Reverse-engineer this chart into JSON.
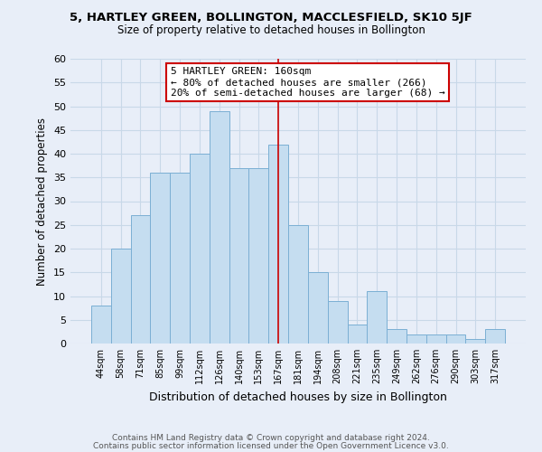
{
  "title": "5, HARTLEY GREEN, BOLLINGTON, MACCLESFIELD, SK10 5JF",
  "subtitle": "Size of property relative to detached houses in Bollington",
  "xlabel": "Distribution of detached houses by size in Bollington",
  "ylabel": "Number of detached properties",
  "footer_line1": "Contains HM Land Registry data © Crown copyright and database right 2024.",
  "footer_line2": "Contains public sector information licensed under the Open Government Licence v3.0.",
  "bin_labels": [
    "44sqm",
    "58sqm",
    "71sqm",
    "85sqm",
    "99sqm",
    "112sqm",
    "126sqm",
    "140sqm",
    "153sqm",
    "167sqm",
    "181sqm",
    "194sqm",
    "208sqm",
    "221sqm",
    "235sqm",
    "249sqm",
    "262sqm",
    "276sqm",
    "290sqm",
    "303sqm",
    "317sqm"
  ],
  "bar_heights": [
    8,
    20,
    27,
    36,
    36,
    40,
    49,
    37,
    37,
    42,
    25,
    15,
    9,
    4,
    11,
    3,
    2,
    2,
    2,
    1,
    3
  ],
  "bar_color": "#c5ddf0",
  "bar_edge_color": "#7bafd4",
  "property_line_x": 9.0,
  "property_line_color": "#cc0000",
  "annotation_title": "5 HARTLEY GREEN: 160sqm",
  "annotation_line1": "← 80% of detached houses are smaller (266)",
  "annotation_line2": "20% of semi-detached houses are larger (68) →",
  "annotation_box_color": "#ffffff",
  "annotation_box_edge_color": "#cc0000",
  "ylim": [
    0,
    60
  ],
  "yticks": [
    0,
    5,
    10,
    15,
    20,
    25,
    30,
    35,
    40,
    45,
    50,
    55,
    60
  ],
  "grid_color": "#c8d8e8",
  "background_color": "#e8eef8"
}
